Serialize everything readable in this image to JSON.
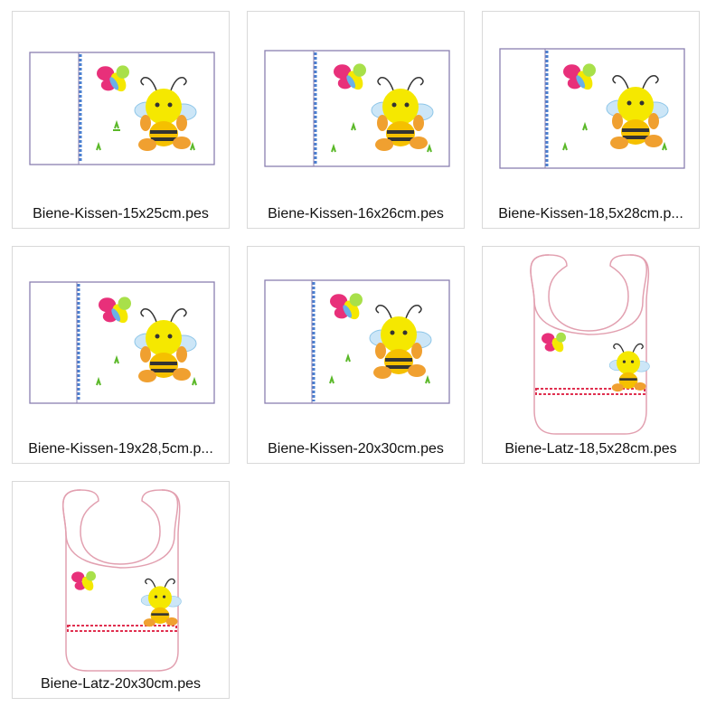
{
  "files": [
    {
      "label": "Biene-Kissen-15x25cm.pes",
      "type": "kissen"
    },
    {
      "label": "Biene-Kissen-16x26cm.pes",
      "type": "kissen"
    },
    {
      "label": "Biene-Kissen-18,5x28cm.p...",
      "type": "kissen"
    },
    {
      "label": "Biene-Kissen-19x28,5cm.p...",
      "type": "kissen"
    },
    {
      "label": "Biene-Kissen-20x30cm.pes",
      "type": "kissen"
    },
    {
      "label": "Biene-Latz-18,5x28cm.pes",
      "type": "latz"
    },
    {
      "label": "Biene-Latz-20x30cm.pes",
      "type": "latz"
    }
  ],
  "colors": {
    "tile_border": "#d9d9d9",
    "pillow_outline": "#8a7fb0",
    "bib_outline": "#e2a0b0",
    "bee_yellow": "#f5e800",
    "bee_orange": "#f0a030",
    "butterfly_pink": "#e8307a",
    "grass_green": "#5ab828",
    "zipper_blue": "#4a7fd0",
    "bib_border_red": "#e03050"
  }
}
